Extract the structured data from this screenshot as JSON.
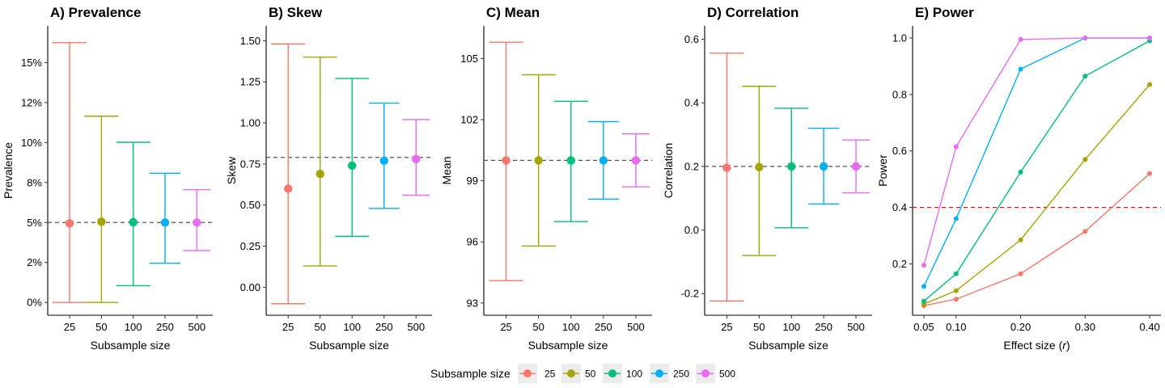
{
  "colors": {
    "25": "#F8766D",
    "50": "#A3A500",
    "100": "#00BF7D",
    "250": "#00B0F6",
    "500": "#E76BF3",
    "reference": "#555555",
    "power_reference": "#FF0000"
  },
  "legend": {
    "title": "Subsample size",
    "items": [
      "25",
      "50",
      "100",
      "250",
      "500"
    ],
    "position": "bottom"
  },
  "chart_data": [
    {
      "type": "errorbar",
      "title": "A) Prevalence",
      "xlabel": "Subsample size",
      "ylabel": "Prevalence",
      "categories": [
        "25",
        "50",
        "100",
        "250",
        "500"
      ],
      "points": [
        {
          "size": "25",
          "estimate": 0.0495,
          "lower": 0.0,
          "upper": 0.1625
        },
        {
          "size": "50",
          "estimate": 0.0505,
          "lower": 0.0,
          "upper": 0.1165
        },
        {
          "size": "100",
          "estimate": 0.0502,
          "lower": 0.0105,
          "upper": 0.1002
        },
        {
          "size": "250",
          "estimate": 0.05,
          "lower": 0.0245,
          "upper": 0.0808
        },
        {
          "size": "500",
          "estimate": 0.05,
          "lower": 0.0325,
          "upper": 0.0705
        }
      ],
      "reference_line": 0.05,
      "ylim": [
        -0.008,
        0.173
      ],
      "yticks": [
        0,
        0.025,
        0.05,
        0.075,
        0.1,
        0.125,
        0.15
      ],
      "yticklabels": [
        "0%",
        "2%",
        "5%",
        "8%",
        "10%",
        "12%",
        "15%"
      ]
    },
    {
      "type": "errorbar",
      "title": "B) Skew",
      "xlabel": "Subsample size",
      "ylabel": "Skew",
      "categories": [
        "25",
        "50",
        "100",
        "250",
        "500"
      ],
      "points": [
        {
          "size": "25",
          "estimate": 0.6,
          "lower": -0.1,
          "upper": 1.48
        },
        {
          "size": "50",
          "estimate": 0.69,
          "lower": 0.13,
          "upper": 1.4
        },
        {
          "size": "100",
          "estimate": 0.74,
          "lower": 0.31,
          "upper": 1.27
        },
        {
          "size": "250",
          "estimate": 0.77,
          "lower": 0.48,
          "upper": 1.12
        },
        {
          "size": "500",
          "estimate": 0.78,
          "lower": 0.56,
          "upper": 1.02
        }
      ],
      "reference_line": 0.79,
      "ylim": [
        -0.17,
        1.59
      ],
      "yticks": [
        0,
        0.25,
        0.5,
        0.75,
        1.0,
        1.25,
        1.5
      ],
      "yticklabels": [
        "0.00",
        "0.25",
        "0.50",
        "0.75",
        "1.00",
        "1.25",
        "1.50"
      ]
    },
    {
      "type": "errorbar",
      "title": "C) Mean",
      "xlabel": "Subsample size",
      "ylabel": "Mean",
      "categories": [
        "25",
        "50",
        "100",
        "250",
        "500"
      ],
      "points": [
        {
          "size": "25",
          "estimate": 100.0,
          "lower": 94.1,
          "upper": 105.8
        },
        {
          "size": "50",
          "estimate": 100.0,
          "lower": 95.8,
          "upper": 104.2
        },
        {
          "size": "100",
          "estimate": 100.0,
          "lower": 97.0,
          "upper": 102.9
        },
        {
          "size": "250",
          "estimate": 100.0,
          "lower": 98.1,
          "upper": 101.9
        },
        {
          "size": "500",
          "estimate": 100.0,
          "lower": 98.7,
          "upper": 101.3
        }
      ],
      "reference_line": 100.0,
      "ylim": [
        92.4,
        106.6
      ],
      "yticks": [
        93,
        96,
        99,
        102,
        105
      ],
      "yticklabels": [
        "93",
        "96",
        "99",
        "102",
        "105"
      ]
    },
    {
      "type": "errorbar",
      "title": "D) Correlation",
      "xlabel": "Subsample size",
      "ylabel": "Correlation",
      "categories": [
        "25",
        "50",
        "100",
        "250",
        "500"
      ],
      "points": [
        {
          "size": "25",
          "estimate": 0.196,
          "lower": -0.223,
          "upper": 0.556
        },
        {
          "size": "50",
          "estimate": 0.198,
          "lower": -0.08,
          "upper": 0.452
        },
        {
          "size": "100",
          "estimate": 0.2,
          "lower": 0.007,
          "upper": 0.383
        },
        {
          "size": "250",
          "estimate": 0.2,
          "lower": 0.082,
          "upper": 0.32
        },
        {
          "size": "500",
          "estimate": 0.2,
          "lower": 0.117,
          "upper": 0.283
        }
      ],
      "reference_line": 0.2,
      "ylim": [
        -0.268,
        0.642
      ],
      "yticks": [
        -0.2,
        0.0,
        0.2,
        0.4,
        0.6
      ],
      "yticklabels": [
        "-0.2",
        "0.0",
        "0.2",
        "0.4",
        "0.6"
      ]
    },
    {
      "type": "line",
      "title": "E) Power",
      "xlabel": "Effect size (r)",
      "ylabel": "Power",
      "x": [
        0.05,
        0.1,
        0.2,
        0.3,
        0.4
      ],
      "series": [
        {
          "name": "25",
          "values": [
            0.052,
            0.075,
            0.165,
            0.315,
            0.52
          ]
        },
        {
          "name": "50",
          "values": [
            0.058,
            0.105,
            0.285,
            0.57,
            0.835
          ]
        },
        {
          "name": "100",
          "values": [
            0.068,
            0.165,
            0.525,
            0.865,
            0.99
          ]
        },
        {
          "name": "250",
          "values": [
            0.12,
            0.36,
            0.89,
            1.0,
            1.0
          ]
        },
        {
          "name": "500",
          "values": [
            0.195,
            0.615,
            0.995,
            1.0,
            1.0
          ]
        }
      ],
      "reference_line": 0.4,
      "xlim": [
        0.0325,
        0.4175
      ],
      "ylim": [
        0.018,
        1.043
      ],
      "xticks": [
        0.05,
        0.1,
        0.2,
        0.3,
        0.4
      ],
      "xticklabels": [
        "0.05",
        "0.10",
        "0.20",
        "0.30",
        "0.40"
      ],
      "yticks": [
        0.2,
        0.4,
        0.6,
        0.8,
        1.0
      ],
      "yticklabels": [
        "0.2",
        "0.4",
        "0.6",
        "0.8",
        "1.0"
      ]
    }
  ]
}
